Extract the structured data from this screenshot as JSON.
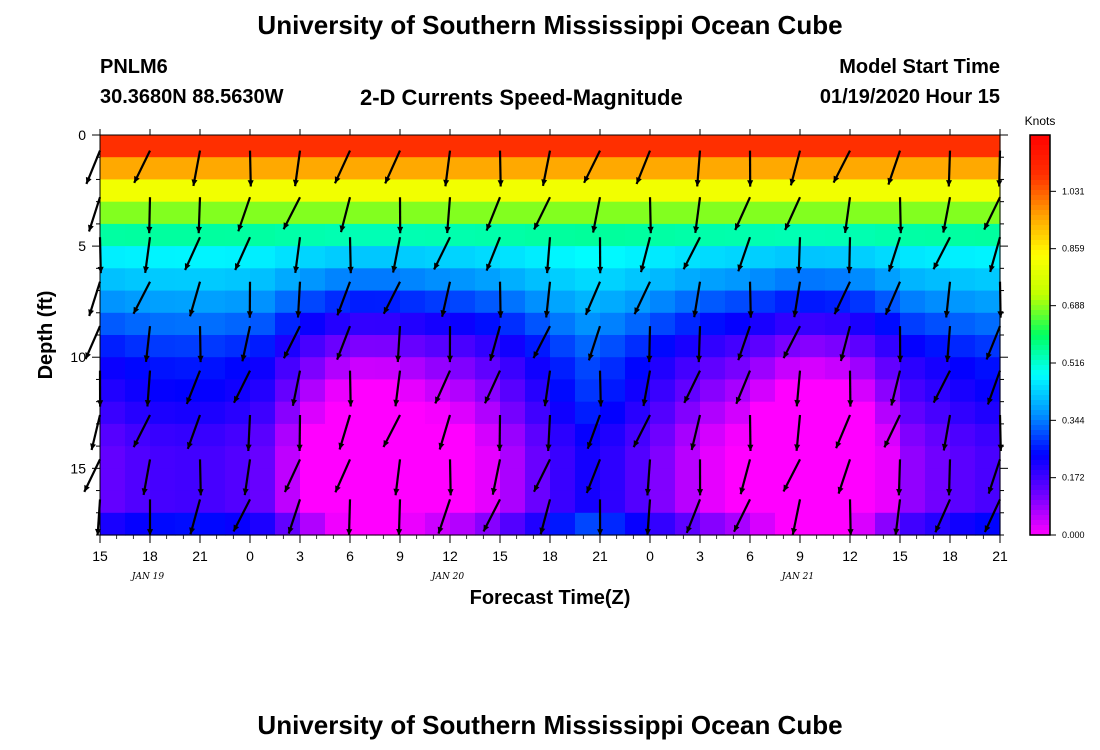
{
  "header": {
    "title": "University of Southern Mississippi Ocean Cube",
    "station": "PNLM6",
    "coordinates": "30.3680N 88.5630W",
    "subtitle": "2-D Currents Speed-Magnitude",
    "model_start_label": "Model Start Time",
    "model_start_value": "01/19/2020 Hour 15"
  },
  "footer": {
    "title": "University of Southern Mississippi Ocean Cube"
  },
  "chart_data": {
    "type": "heatmap",
    "title": "2-D Currents Speed-Magnitude",
    "xlabel": "Forecast Time(Z)",
    "ylabel": "Depth (ft)",
    "x_tick_labels": [
      "15",
      "18",
      "21",
      "0",
      "3",
      "6",
      "9",
      "12",
      "15",
      "18",
      "21",
      "0",
      "3",
      "6",
      "9",
      "12",
      "15",
      "18",
      "21"
    ],
    "x_date_labels": [
      {
        "label": "JAN 19",
        "tick_index": 1
      },
      {
        "label": "JAN 20",
        "tick_index": 7
      },
      {
        "label": "JAN 21",
        "tick_index": 14
      }
    ],
    "x_hours_range": [
      0,
      54
    ],
    "y_ticks": [
      0,
      5,
      10,
      15
    ],
    "y_range": [
      0,
      18
    ],
    "depth_bins": [
      0.5,
      1.5,
      2.5,
      3.5,
      4.5,
      5.5,
      6.5,
      7.5,
      8.5,
      9.5,
      10.5,
      11.5,
      12.5,
      13.5,
      14.5,
      15.5,
      16.5,
      17.5
    ],
    "colorbar": {
      "units": "Knots",
      "tick_labels": [
        "0.000",
        "0.172",
        "0.344",
        "0.516",
        "0.688",
        "0.859",
        "1.031"
      ],
      "range": [
        0,
        1.2
      ],
      "colors": [
        "#ff00ff",
        "#7000ff",
        "#0000ff",
        "#0090ff",
        "#00ffff",
        "#00ff60",
        "#c0ff00",
        "#ffff00",
        "#ffa000",
        "#ff3000",
        "#ff0000"
      ]
    },
    "speed_profile_sample": {
      "surface_knots": 1.15,
      "depth_5ft_knots": 0.48,
      "depth_10ft_knots": 0.2,
      "depth_14ft_knots": 0.08
    },
    "vector_columns_hours": [
      0,
      3,
      6,
      9,
      12,
      15,
      18,
      21,
      24,
      27,
      30,
      33,
      36,
      39,
      42,
      45,
      48,
      51,
      54
    ]
  }
}
